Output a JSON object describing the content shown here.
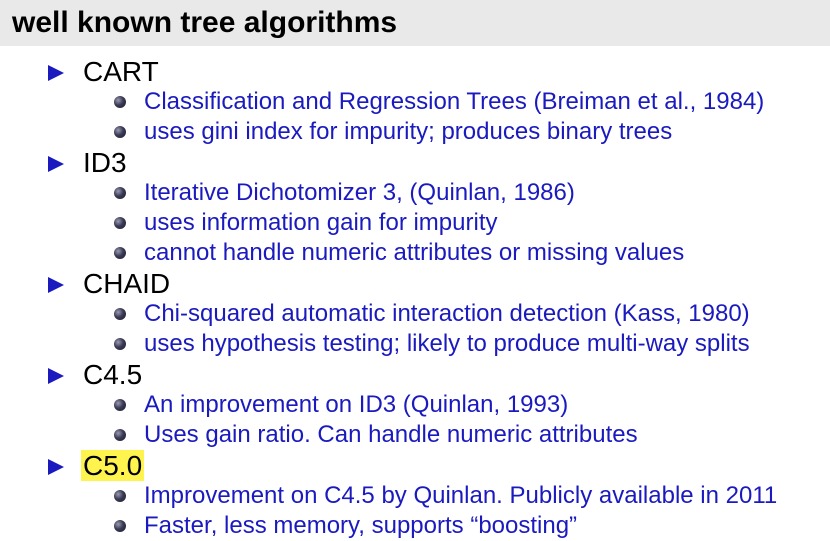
{
  "title": "well known tree algorithms",
  "items": [
    {
      "label": "CART",
      "highlighted": false,
      "subs": [
        "Classification and Regression Trees (Breiman et al., 1984)",
        "uses gini index for impurity; produces binary trees"
      ]
    },
    {
      "label": "ID3",
      "highlighted": false,
      "subs": [
        "Iterative Dichotomizer 3, (Quinlan, 1986)",
        "uses information gain for impurity",
        "cannot handle numeric attributes or missing values"
      ]
    },
    {
      "label": "CHAID",
      "highlighted": false,
      "subs": [
        "Chi-squared automatic interaction detection (Kass, 1980)",
        "uses hypothesis testing; likely to produce multi-way splits"
      ]
    },
    {
      "label": "C4.5",
      "highlighted": false,
      "subs": [
        "An improvement on ID3 (Quinlan, 1993)",
        "Uses gain ratio. Can handle numeric attributes"
      ]
    },
    {
      "label": "C5.0",
      "highlighted": true,
      "subs": [
        "Improvement on C4.5 by Quinlan. Publicly available in 2011",
        "Faster, less memory, supports “boosting”"
      ]
    }
  ],
  "colors": {
    "bullet": "#1a1abf",
    "sub_text": "#1a1abf",
    "highlight": "#fff34d",
    "title_bg": "#e9e9e9"
  },
  "icons": {
    "item_bullet": "triangle-bullet-icon",
    "sub_bullet": "ball-bullet-icon"
  }
}
